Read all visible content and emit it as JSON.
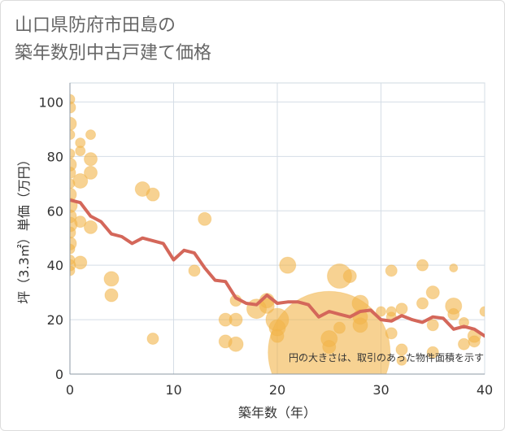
{
  "title": {
    "line1": "山口県防府市田島の",
    "line2": "築年数別中古戸建て価格"
  },
  "chart_data": {
    "type": "scatter",
    "xlabel": "築年数（年）",
    "ylabel": "坪（3.3㎡）単価（万円）",
    "xlim": [
      0,
      40
    ],
    "ylim": [
      0,
      107
    ],
    "xticks": [
      0,
      10,
      20,
      30,
      40
    ],
    "yticks": [
      0,
      20,
      40,
      60,
      80,
      100
    ],
    "grid": true,
    "note": "円の大きさは、取引のあった物件面積を示す",
    "colors": {
      "bubble": "#f2b44a",
      "line": "#d4675a",
      "grid": "#d5dde6",
      "axis": "#8e9aa6"
    },
    "line": {
      "x": [
        0,
        1,
        2,
        3,
        4,
        5,
        6,
        7,
        8,
        9,
        10,
        11,
        12,
        13,
        14,
        15,
        16,
        17,
        18,
        19,
        20,
        21,
        22,
        23,
        24,
        25,
        26,
        27,
        28,
        29,
        30,
        31,
        32,
        33,
        34,
        35,
        36,
        37,
        38,
        39,
        40
      ],
      "y": [
        64,
        63,
        58,
        56,
        51.5,
        50.5,
        48,
        50,
        49,
        48,
        42,
        45.5,
        44.5,
        39,
        34.5,
        34,
        28,
        26,
        25.5,
        29,
        26,
        26.5,
        26.5,
        25.5,
        21,
        23,
        22,
        21,
        23,
        23.5,
        20,
        19.5,
        21.5,
        20,
        19,
        21,
        20.5,
        16.5,
        17.5,
        16.5,
        14
      ]
    },
    "bubbles": [
      {
        "x": 0,
        "y": 101,
        "r": 6
      },
      {
        "x": 0,
        "y": 98,
        "r": 7
      },
      {
        "x": 0,
        "y": 92,
        "r": 8
      },
      {
        "x": 0,
        "y": 88,
        "r": 6
      },
      {
        "x": 0,
        "y": 81,
        "r": 6
      },
      {
        "x": 0,
        "y": 77,
        "r": 8
      },
      {
        "x": 0,
        "y": 74,
        "r": 7
      },
      {
        "x": 0,
        "y": 70,
        "r": 6
      },
      {
        "x": 0,
        "y": 66,
        "r": 8
      },
      {
        "x": 0,
        "y": 62,
        "r": 9
      },
      {
        "x": 0,
        "y": 58,
        "r": 8
      },
      {
        "x": 0,
        "y": 55,
        "r": 9
      },
      {
        "x": 0,
        "y": 52,
        "r": 7
      },
      {
        "x": 0,
        "y": 48,
        "r": 8
      },
      {
        "x": 0,
        "y": 46,
        "r": 6
      },
      {
        "x": 0,
        "y": 42,
        "r": 6
      },
      {
        "x": 0,
        "y": 40,
        "r": 7
      },
      {
        "x": 0,
        "y": 38,
        "r": 6
      },
      {
        "x": 1,
        "y": 85,
        "r": 6
      },
      {
        "x": 1,
        "y": 82,
        "r": 6
      },
      {
        "x": 1,
        "y": 71,
        "r": 9
      },
      {
        "x": 1,
        "y": 56,
        "r": 7
      },
      {
        "x": 1,
        "y": 41,
        "r": 8
      },
      {
        "x": 2,
        "y": 88,
        "r": 6
      },
      {
        "x": 2,
        "y": 79,
        "r": 8
      },
      {
        "x": 2,
        "y": 74,
        "r": 8
      },
      {
        "x": 2,
        "y": 54,
        "r": 8
      },
      {
        "x": 4,
        "y": 35,
        "r": 9
      },
      {
        "x": 4,
        "y": 29,
        "r": 8
      },
      {
        "x": 7,
        "y": 68,
        "r": 9
      },
      {
        "x": 8,
        "y": 66,
        "r": 8
      },
      {
        "x": 8,
        "y": 13,
        "r": 7
      },
      {
        "x": 13,
        "y": 57,
        "r": 8
      },
      {
        "x": 12,
        "y": 38,
        "r": 7
      },
      {
        "x": 15,
        "y": 20,
        "r": 8
      },
      {
        "x": 15,
        "y": 12,
        "r": 8
      },
      {
        "x": 16,
        "y": 20,
        "r": 8
      },
      {
        "x": 16,
        "y": 11,
        "r": 9
      },
      {
        "x": 16,
        "y": 27,
        "r": 7
      },
      {
        "x": 18,
        "y": 24,
        "r": 12
      },
      {
        "x": 19,
        "y": 27,
        "r": 9
      },
      {
        "x": 19,
        "y": 25,
        "r": 9
      },
      {
        "x": 20,
        "y": 20,
        "r": 14
      },
      {
        "x": 20,
        "y": 17,
        "r": 10
      },
      {
        "x": 20,
        "y": 14,
        "r": 8
      },
      {
        "x": 21,
        "y": 40,
        "r": 10
      },
      {
        "x": 25,
        "y": 8,
        "r": 75
      },
      {
        "x": 25,
        "y": 13,
        "r": 10
      },
      {
        "x": 25,
        "y": 10,
        "r": 8
      },
      {
        "x": 26,
        "y": 36,
        "r": 15
      },
      {
        "x": 26,
        "y": 17,
        "r": 7
      },
      {
        "x": 27,
        "y": 36,
        "r": 8
      },
      {
        "x": 28,
        "y": 26,
        "r": 10
      },
      {
        "x": 28,
        "y": 18,
        "r": 9
      },
      {
        "x": 28,
        "y": 21,
        "r": 9
      },
      {
        "x": 30,
        "y": 23,
        "r": 6
      },
      {
        "x": 31,
        "y": 38,
        "r": 7
      },
      {
        "x": 31,
        "y": 23,
        "r": 6
      },
      {
        "x": 31,
        "y": 21,
        "r": 6
      },
      {
        "x": 31,
        "y": 15,
        "r": 7
      },
      {
        "x": 32,
        "y": 24,
        "r": 7
      },
      {
        "x": 32,
        "y": 9,
        "r": 7
      },
      {
        "x": 32,
        "y": 5,
        "r": 6
      },
      {
        "x": 34,
        "y": 40,
        "r": 7
      },
      {
        "x": 34,
        "y": 26,
        "r": 7
      },
      {
        "x": 35,
        "y": 30,
        "r": 8
      },
      {
        "x": 35,
        "y": 18,
        "r": 7
      },
      {
        "x": 35,
        "y": 8,
        "r": 7
      },
      {
        "x": 37,
        "y": 39,
        "r": 5
      },
      {
        "x": 37,
        "y": 25,
        "r": 10
      },
      {
        "x": 37,
        "y": 22,
        "r": 7
      },
      {
        "x": 38,
        "y": 19,
        "r": 6
      },
      {
        "x": 38,
        "y": 11,
        "r": 7
      },
      {
        "x": 39,
        "y": 14,
        "r": 8
      },
      {
        "x": 39,
        "y": 12,
        "r": 7
      },
      {
        "x": 40,
        "y": 23,
        "r": 6
      }
    ]
  }
}
